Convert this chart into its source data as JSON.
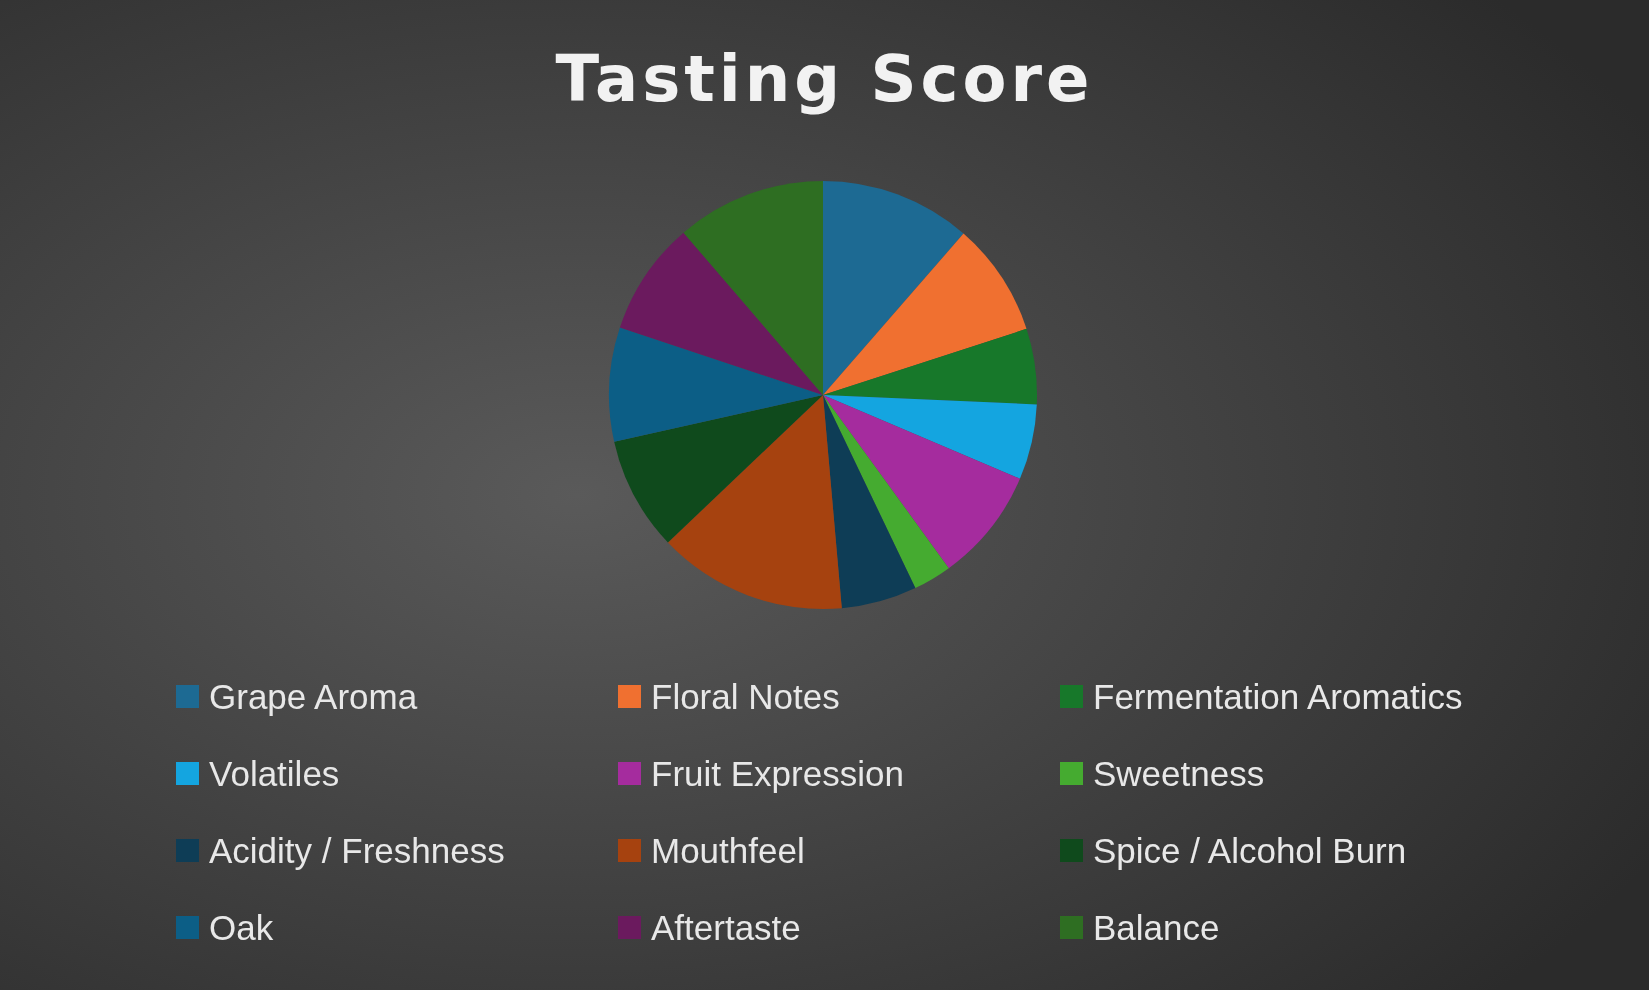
{
  "chart_data": {
    "type": "pie",
    "title": "Tasting Score",
    "categories": [
      "Grape Aroma",
      "Floral Notes",
      "Fermentation Aromatics",
      "Volatiles",
      "Fruit Expression",
      "Sweetness",
      "Acidity / Freshness",
      "Mouthfeel",
      "Spice / Alcohol Burn",
      "Oak",
      "Aftertaste",
      "Balance"
    ],
    "values": [
      11.4,
      8.6,
      5.7,
      5.7,
      8.6,
      2.9,
      5.7,
      14.3,
      8.6,
      8.6,
      8.6,
      11.3
    ],
    "colors": [
      "#1d6a93",
      "#f07030",
      "#17782a",
      "#14a5e0",
      "#a52c9e",
      "#45ab30",
      "#0e3d56",
      "#a6420f",
      "#0f4a1c",
      "#0c5e86",
      "#6b1a5e",
      "#2e6e22"
    ],
    "legend": "bottom"
  }
}
